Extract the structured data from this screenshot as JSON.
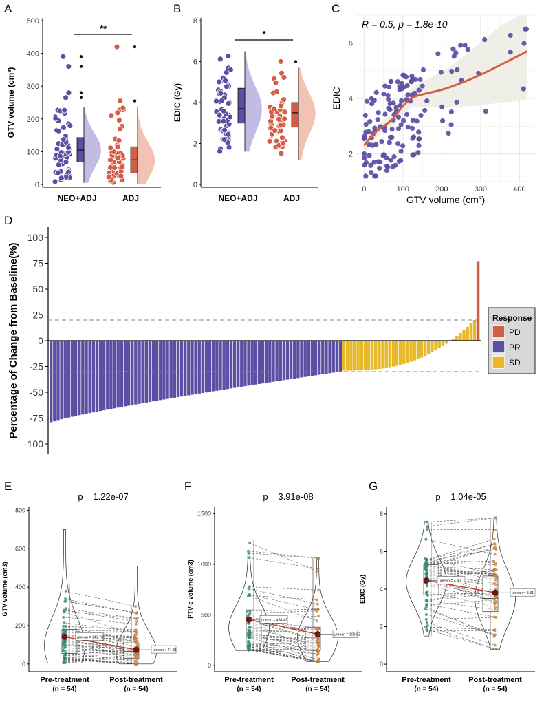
{
  "colors": {
    "neo": "#5b4ea3",
    "adj": "#d45e45",
    "neo_light": "#b3aadc",
    "adj_light": "#efb3a3",
    "pd": "#cf5f47",
    "pr": "#5b4ea3",
    "sd": "#e6b82a",
    "smooth_band": "#ecece4",
    "violin_green": "#2e8b6b",
    "violin_orange": "#c1823c"
  },
  "panels": {
    "A": "A",
    "B": "B",
    "C": "C",
    "D": "D",
    "E": "E",
    "F": "F",
    "G": "G"
  },
  "chart_data": [
    {
      "id": "A",
      "type": "raincloud",
      "ylabel": "GTV volume (cm³)",
      "categories": [
        "NEO+ADJ",
        "ADJ"
      ],
      "ylim": [
        0,
        500
      ],
      "yticks": [
        0,
        100,
        200,
        300,
        400,
        500
      ],
      "boxes": [
        {
          "q1": 68,
          "median": 105,
          "q3": 143,
          "whislo": 5,
          "whishi": 235
        },
        {
          "q1": 35,
          "median": 75,
          "q3": 115,
          "whislo": 0,
          "whishi": 238
        }
      ],
      "outliers": [
        [
          390,
          360,
          280,
          265
        ],
        [
          420,
          255
        ]
      ],
      "significance": "**"
    },
    {
      "id": "B",
      "type": "raincloud",
      "ylabel": "EDIC (Gy)",
      "categories": [
        "NEO+ADJ",
        "ADJ"
      ],
      "ylim": [
        0,
        8
      ],
      "yticks": [
        0,
        2,
        4,
        6,
        8
      ],
      "boxes": [
        {
          "q1": 3.0,
          "median": 3.7,
          "q3": 4.7,
          "whislo": 1.6,
          "whishi": 6.5
        },
        {
          "q1": 2.8,
          "median": 3.5,
          "q3": 4.0,
          "whislo": 1.2,
          "whishi": 5.7
        }
      ],
      "outliers": [
        [],
        [
          6.0
        ]
      ],
      "significance": "*"
    },
    {
      "id": "C",
      "type": "scatter",
      "annotation": "R = 0.5, p = 1.8e-10",
      "xlabel": "GTV volume (cm³)",
      "ylabel": "EDIC",
      "xlim": [
        -20,
        440
      ],
      "ylim": [
        1.0,
        7.0
      ],
      "xticks": [
        0,
        100,
        200,
        300,
        400
      ],
      "yticks": [
        2,
        4,
        6
      ],
      "smooth": {
        "x": [
          0,
          25,
          50,
          75,
          100,
          125,
          150,
          200,
          250,
          300,
          350,
          400,
          420
        ],
        "y": [
          2.3,
          2.75,
          3.0,
          3.25,
          3.75,
          4.05,
          4.15,
          4.3,
          4.55,
          4.85,
          5.2,
          5.55,
          5.7
        ],
        "lower": [
          2.0,
          2.5,
          2.8,
          3.0,
          3.45,
          3.7,
          3.7,
          3.65,
          3.7,
          3.75,
          3.85,
          3.9,
          3.95
        ],
        "upper": [
          2.6,
          3.0,
          3.2,
          3.5,
          4.05,
          4.4,
          4.6,
          4.95,
          5.45,
          6.0,
          6.6,
          7.0,
          7.0
        ]
      }
    },
    {
      "id": "D",
      "type": "waterfall",
      "ylabel": "Percentage of Change from Baseline(%)",
      "ylim": [
        -110,
        110
      ],
      "yticks": [
        100,
        75,
        50,
        25,
        0,
        -25,
        -50,
        -75,
        -100
      ],
      "thresholds": [
        20,
        -30
      ],
      "legend": {
        "title": "Response",
        "items": [
          "PD",
          "PR",
          "SD"
        ]
      },
      "pr_range": [
        -79,
        -30
      ],
      "sd_range": [
        -29,
        20
      ],
      "pd_values": [
        77
      ]
    },
    {
      "id": "E",
      "type": "paired_violin",
      "pvalue": "p = 1.22e-07",
      "ylabel": "GTV volume (cm3)",
      "ylim": [
        -40,
        820
      ],
      "yticks": [
        0,
        200,
        400,
        600,
        800
      ],
      "categories": [
        "Pre-treatment",
        "Post-treatment"
      ],
      "n_labels": [
        "(n = 54)",
        "(n = 54)"
      ],
      "means": [
        141.73,
        74.31
      ],
      "mean_labels": [
        "μmean = 141.73",
        "μmean = 74.31"
      ],
      "box": [
        {
          "q1": 55,
          "median": 95,
          "q3": 180,
          "min": 5,
          "max": 420
        },
        {
          "q1": 30,
          "median": 65,
          "q3": 110,
          "min": 0,
          "max": 300
        }
      ],
      "ranges": [
        [
          5,
          700
        ],
        [
          0,
          510
        ]
      ]
    },
    {
      "id": "F",
      "type": "paired_violin",
      "pvalue": "p = 3.91e-08",
      "ylabel": "PTV-c volume (cm3)",
      "ylim": [
        -60,
        1570
      ],
      "yticks": [
        0,
        500,
        1000,
        1500
      ],
      "categories": [
        "Pre-treatment",
        "Post-treatment"
      ],
      "n_labels": [
        "(n = 54)",
        "(n = 54)"
      ],
      "means": [
        454.43,
        309.83
      ],
      "mean_labels": [
        "μmean = 454.43",
        "μmean = 309.83"
      ],
      "box": [
        {
          "q1": 220,
          "median": 370,
          "q3": 550,
          "min": 150,
          "max": 1240
        },
        {
          "q1": 150,
          "median": 280,
          "q3": 380,
          "min": 40,
          "max": 1060
        }
      ],
      "ranges": [
        [
          150,
          1240
        ],
        [
          40,
          1060
        ]
      ]
    },
    {
      "id": "G",
      "type": "paired_violin",
      "pvalue": "p = 1.04e-05",
      "ylabel": "EDIC (Gy)",
      "ylim": [
        -0.4,
        8.4
      ],
      "yticks": [
        0,
        2,
        4,
        6,
        8
      ],
      "categories": [
        "Pre-treatment",
        "Post-treatment"
      ],
      "n_labels": [
        "(n = 54)",
        "(n = 54)"
      ],
      "means": [
        4.46,
        3.81
      ],
      "mean_labels": [
        "μmean = 4.46",
        "μmean = 3.81"
      ],
      "box": [
        {
          "q1": 3.7,
          "median": 4.4,
          "q3": 5.3,
          "min": 1.5,
          "max": 7.6
        },
        {
          "q1": 2.8,
          "median": 3.5,
          "q3": 4.7,
          "min": 0.8,
          "max": 7.8
        }
      ],
      "ranges": [
        [
          1.5,
          7.6
        ],
        [
          0.8,
          7.8
        ]
      ]
    }
  ]
}
